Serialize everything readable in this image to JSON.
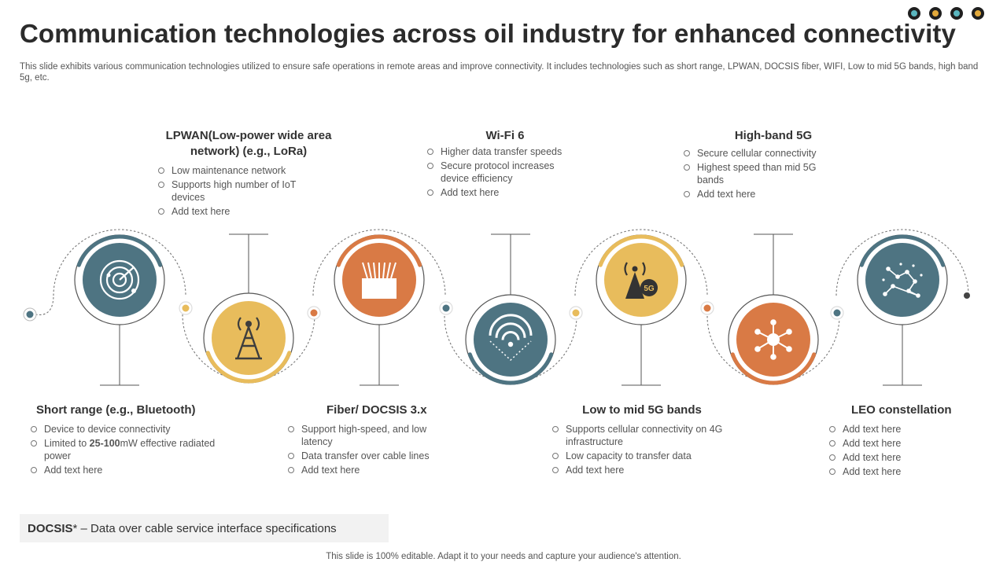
{
  "title": "Communication technologies across oil industry for enhanced connectivity",
  "subtitle": "This slide exhibits various communication technologies utilized to ensure safe operations in remote areas and improve connectivity.  It includes technologies such as short range, LPWAN, DOCSIS fiber, WIFI,  Low to mid 5G bands, high band 5g, etc.",
  "colors": {
    "teal": "#4e7482",
    "orange": "#d97a45",
    "yellow": "#e8bc5c",
    "light_yellow": "#e6c270"
  },
  "corner_dots": [
    "#5ab6bf",
    "#e2a93b",
    "#5ab6bf",
    "#e2a93b"
  ],
  "nodes": [
    {
      "icon": "radar-icon",
      "color": "teal"
    },
    {
      "icon": "cell-tower-icon",
      "color": "yellow"
    },
    {
      "icon": "fiber-optic-icon",
      "color": "orange"
    },
    {
      "icon": "wifi-icon",
      "color": "teal"
    },
    {
      "icon": "tower-5g-icon",
      "color": "yellow"
    },
    {
      "icon": "network-hub-icon",
      "color": "orange"
    },
    {
      "icon": "constellation-icon",
      "color": "teal"
    }
  ],
  "blocks": [
    {
      "title": "Short range (e.g., Bluetooth)",
      "items": [
        "Device to device connectivity",
        "Limited to 25-100mW effective radiated power",
        "Add text here"
      ]
    },
    {
      "title": "LPWAN(Low-power wide area network) (e.g., LoRa)",
      "items": [
        "Low maintenance network",
        "Supports high number of IoT devices",
        "Add text here"
      ]
    },
    {
      "title": "Fiber/ DOCSIS 3.x",
      "items": [
        "Support high-speed, and low latency",
        "Data transfer over cable lines",
        "Add text here"
      ]
    },
    {
      "title": "Wi-Fi 6",
      "items": [
        "Higher data transfer speeds",
        "Secure protocol increases device efficiency",
        "Add text here"
      ]
    },
    {
      "title": "Low to mid 5G bands",
      "items": [
        "Supports cellular connectivity on 4G infrastructure",
        "Low capacity to transfer data",
        "Add text here"
      ]
    },
    {
      "title": "High-band 5G",
      "items": [
        "Secure cellular connectivity",
        "Highest speed than mid 5G bands",
        "Add text here"
      ]
    },
    {
      "title": "LEO constellation",
      "items": [
        "Add text here",
        "Add text here",
        "Add text here",
        "Add text here"
      ]
    }
  ],
  "note": {
    "term": "DOCSIS",
    "text": "* – Data over cable service interface specifications"
  },
  "footer": "This slide is 100% editable. Adapt it to your needs and capture your audience's attention."
}
